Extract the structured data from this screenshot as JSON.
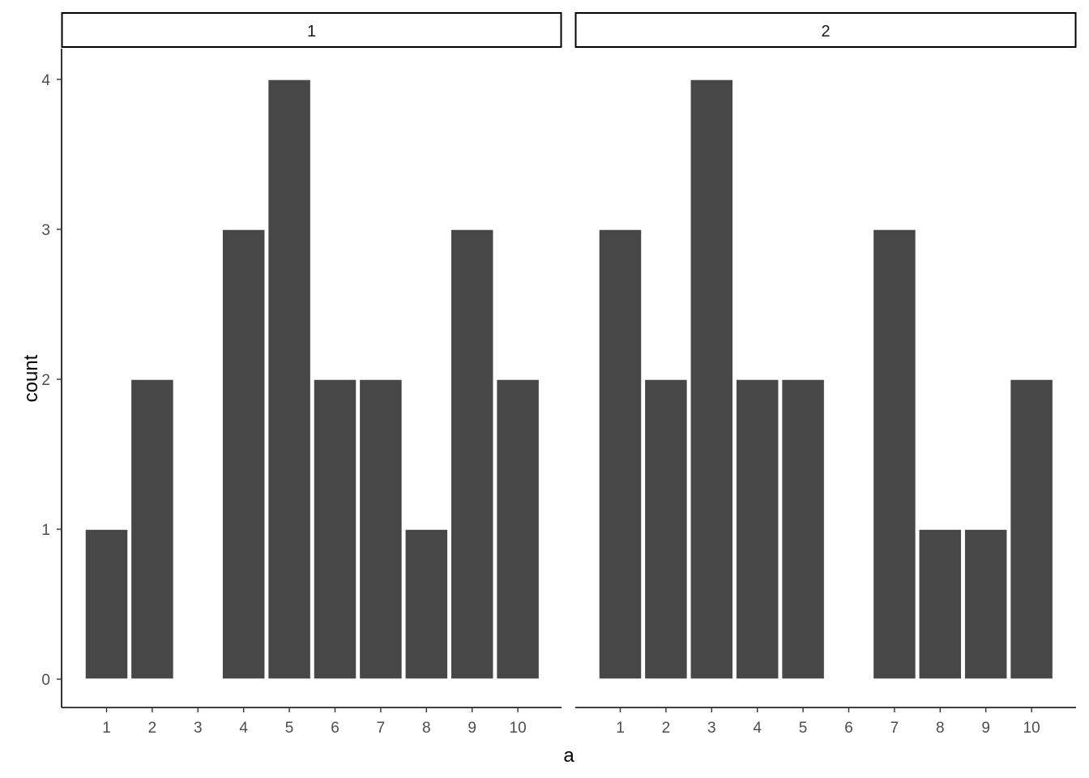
{
  "chart_data": {
    "type": "bar",
    "xlabel": "a",
    "ylabel": "count",
    "ylim": [
      0,
      4
    ],
    "yticks": [
      "0",
      "1",
      "2",
      "3",
      "4"
    ],
    "categories": [
      "1",
      "2",
      "3",
      "4",
      "5",
      "6",
      "7",
      "8",
      "9",
      "10"
    ],
    "grid": false,
    "bar_color": "#474747",
    "facets": [
      {
        "label": "1",
        "values": [
          1,
          2,
          0,
          3,
          4,
          2,
          2,
          1,
          3,
          2
        ]
      },
      {
        "label": "2",
        "values": [
          3,
          2,
          4,
          2,
          2,
          0,
          3,
          1,
          1,
          2
        ]
      }
    ]
  }
}
